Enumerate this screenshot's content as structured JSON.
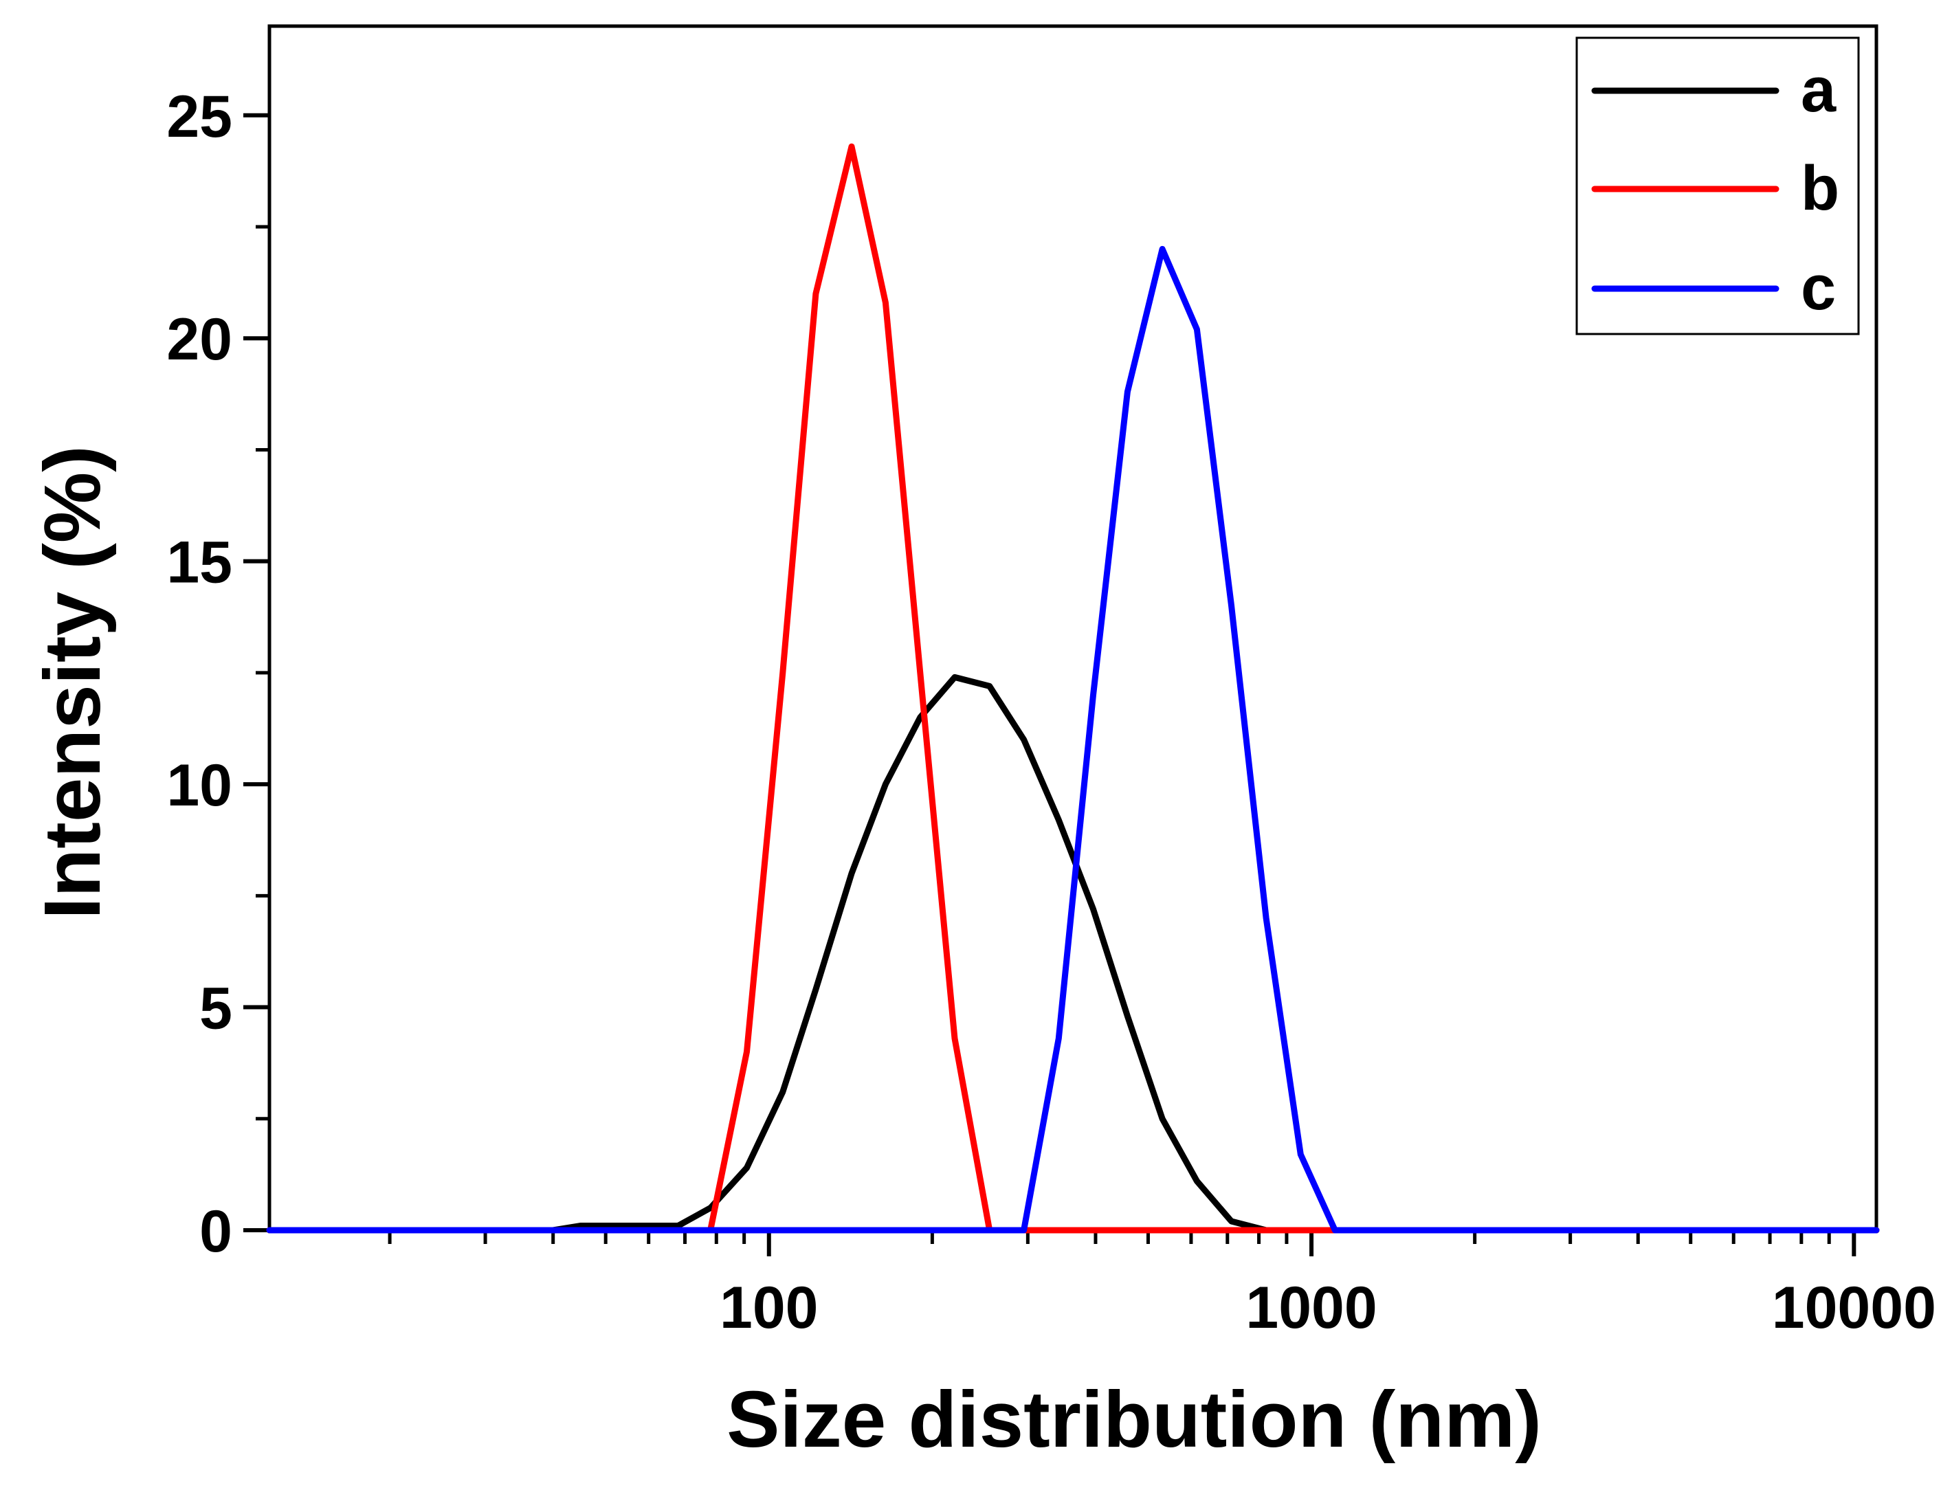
{
  "chart_data": {
    "type": "line",
    "title": "",
    "xlabel": "Size distribution (nm)",
    "ylabel": "Intensity (%)",
    "xscale": "log",
    "xlim": [
      12,
      11000
    ],
    "ylim": [
      0,
      27
    ],
    "grid": false,
    "legend_position": "top-right",
    "x_ticks": [
      {
        "value": 100,
        "label": "100"
      },
      {
        "value": 1000,
        "label": "1000"
      },
      {
        "value": 10000,
        "label": "10000"
      }
    ],
    "y_ticks": [
      {
        "value": 0,
        "label": "0"
      },
      {
        "value": 5,
        "label": "5"
      },
      {
        "value": 10,
        "label": "10"
      },
      {
        "value": 15,
        "label": "15"
      },
      {
        "value": 20,
        "label": "20"
      },
      {
        "value": 25,
        "label": "25"
      }
    ],
    "series": [
      {
        "name": "a",
        "color": "#000000",
        "points": [
          [
            12,
            0
          ],
          [
            40,
            0
          ],
          [
            45,
            0.1
          ],
          [
            50,
            0.1
          ],
          [
            68,
            0.1
          ],
          [
            78,
            0.5
          ],
          [
            91,
            1.4
          ],
          [
            106,
            3.1
          ],
          [
            122,
            5.4
          ],
          [
            142,
            8.0
          ],
          [
            164,
            10.0
          ],
          [
            190,
            11.5
          ],
          [
            220,
            12.4
          ],
          [
            255,
            12.2
          ],
          [
            295,
            11.0
          ],
          [
            342,
            9.2
          ],
          [
            396,
            7.2
          ],
          [
            458,
            4.8
          ],
          [
            531,
            2.5
          ],
          [
            615,
            1.1
          ],
          [
            712,
            0.2
          ],
          [
            825,
            0
          ],
          [
            11000,
            0
          ]
        ]
      },
      {
        "name": "b",
        "color": "#ff0000",
        "points": [
          [
            12,
            0
          ],
          [
            78,
            0
          ],
          [
            91,
            4.0
          ],
          [
            106,
            12.5
          ],
          [
            122,
            21.0
          ],
          [
            142,
            24.3
          ],
          [
            164,
            20.8
          ],
          [
            190,
            12.5
          ],
          [
            220,
            4.3
          ],
          [
            255,
            0
          ],
          [
            11000,
            0
          ]
        ]
      },
      {
        "name": "c",
        "color": "#0000ff",
        "points": [
          [
            12,
            0
          ],
          [
            295,
            0
          ],
          [
            342,
            4.3
          ],
          [
            396,
            12.0
          ],
          [
            458,
            18.8
          ],
          [
            531,
            22.0
          ],
          [
            615,
            20.2
          ],
          [
            712,
            14.0
          ],
          [
            825,
            7.0
          ],
          [
            955,
            1.7
          ],
          [
            1105,
            0
          ],
          [
            11000,
            0
          ]
        ]
      }
    ]
  }
}
